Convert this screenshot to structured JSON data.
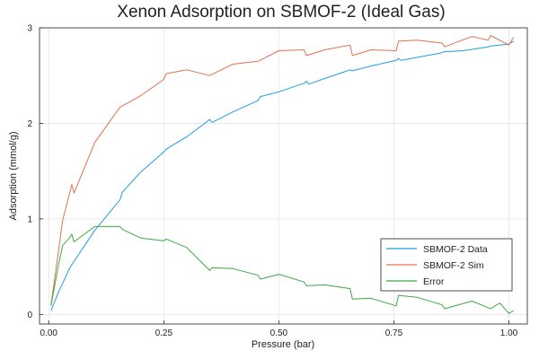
{
  "chart_data": {
    "type": "line",
    "title": "Xenon Adsorption on SBMOF-2 (Ideal Gas)",
    "xlabel": "Pressure (bar)",
    "ylabel": "Adsorption (mmol/g)",
    "xlim": [
      -0.02,
      1.04
    ],
    "ylim": [
      -0.1,
      3.0
    ],
    "xticks": [
      0.0,
      0.25,
      0.5,
      0.75,
      1.0
    ],
    "xtick_labels": [
      "0.00",
      "0.25",
      "0.50",
      "0.75",
      "1.00"
    ],
    "yticks": [
      0,
      1,
      2,
      3
    ],
    "ytick_labels": [
      "0",
      "1",
      "2",
      "3"
    ],
    "grid": true,
    "legend_position": "bottom-right",
    "series": [
      {
        "name": "SBMOF-2 Data",
        "color": "#1f9fe0",
        "points": [
          [
            0.005,
            0.04
          ],
          [
            0.02,
            0.22
          ],
          [
            0.045,
            0.48
          ],
          [
            0.05,
            0.52
          ],
          [
            0.1,
            0.88
          ],
          [
            0.155,
            1.2
          ],
          [
            0.16,
            1.28
          ],
          [
            0.2,
            1.49
          ],
          [
            0.25,
            1.7
          ],
          [
            0.255,
            1.73
          ],
          [
            0.3,
            1.86
          ],
          [
            0.35,
            2.04
          ],
          [
            0.355,
            2.01
          ],
          [
            0.4,
            2.12
          ],
          [
            0.455,
            2.24
          ],
          [
            0.46,
            2.28
          ],
          [
            0.5,
            2.33
          ],
          [
            0.555,
            2.42
          ],
          [
            0.56,
            2.44
          ],
          [
            0.565,
            2.41
          ],
          [
            0.6,
            2.47
          ],
          [
            0.655,
            2.56
          ],
          [
            0.66,
            2.55
          ],
          [
            0.7,
            2.6
          ],
          [
            0.755,
            2.66
          ],
          [
            0.76,
            2.68
          ],
          [
            0.765,
            2.66
          ],
          [
            0.8,
            2.69
          ],
          [
            0.855,
            2.74
          ],
          [
            0.86,
            2.75
          ],
          [
            0.9,
            2.76
          ],
          [
            0.955,
            2.8
          ],
          [
            0.96,
            2.81
          ],
          [
            1.0,
            2.83
          ],
          [
            1.01,
            2.86
          ]
        ]
      },
      {
        "name": "SBMOF-2 Sim",
        "color": "#e2714e",
        "points": [
          [
            0.005,
            0.1
          ],
          [
            0.02,
            0.62
          ],
          [
            0.03,
            0.98
          ],
          [
            0.045,
            1.26
          ],
          [
            0.05,
            1.36
          ],
          [
            0.055,
            1.27
          ],
          [
            0.1,
            1.8
          ],
          [
            0.155,
            2.17
          ],
          [
            0.2,
            2.29
          ],
          [
            0.25,
            2.46
          ],
          [
            0.255,
            2.52
          ],
          [
            0.3,
            2.56
          ],
          [
            0.35,
            2.5
          ],
          [
            0.4,
            2.62
          ],
          [
            0.455,
            2.65
          ],
          [
            0.5,
            2.76
          ],
          [
            0.555,
            2.77
          ],
          [
            0.56,
            2.71
          ],
          [
            0.6,
            2.77
          ],
          [
            0.655,
            2.82
          ],
          [
            0.66,
            2.71
          ],
          [
            0.7,
            2.77
          ],
          [
            0.755,
            2.76
          ],
          [
            0.76,
            2.86
          ],
          [
            0.8,
            2.87
          ],
          [
            0.855,
            2.84
          ],
          [
            0.86,
            2.8
          ],
          [
            0.92,
            2.91
          ],
          [
            0.955,
            2.87
          ],
          [
            0.96,
            2.92
          ],
          [
            1.0,
            2.82
          ],
          [
            1.01,
            2.9
          ]
        ]
      },
      {
        "name": "Error",
        "color": "#3fa843",
        "points": [
          [
            0.005,
            0.09
          ],
          [
            0.02,
            0.49
          ],
          [
            0.03,
            0.72
          ],
          [
            0.045,
            0.8
          ],
          [
            0.05,
            0.84
          ],
          [
            0.055,
            0.76
          ],
          [
            0.1,
            0.92
          ],
          [
            0.155,
            0.92
          ],
          [
            0.16,
            0.89
          ],
          [
            0.2,
            0.8
          ],
          [
            0.25,
            0.77
          ],
          [
            0.255,
            0.79
          ],
          [
            0.3,
            0.7
          ],
          [
            0.35,
            0.46
          ],
          [
            0.355,
            0.49
          ],
          [
            0.4,
            0.48
          ],
          [
            0.455,
            0.41
          ],
          [
            0.46,
            0.37
          ],
          [
            0.5,
            0.42
          ],
          [
            0.555,
            0.34
          ],
          [
            0.56,
            0.3
          ],
          [
            0.6,
            0.31
          ],
          [
            0.655,
            0.27
          ],
          [
            0.66,
            0.16
          ],
          [
            0.7,
            0.17
          ],
          [
            0.755,
            0.09
          ],
          [
            0.76,
            0.2
          ],
          [
            0.8,
            0.18
          ],
          [
            0.855,
            0.1
          ],
          [
            0.86,
            0.06
          ],
          [
            0.92,
            0.14
          ],
          [
            0.955,
            0.07
          ],
          [
            0.96,
            0.06
          ],
          [
            0.98,
            0.12
          ],
          [
            1.0,
            0.01
          ],
          [
            1.01,
            0.04
          ]
        ]
      }
    ]
  }
}
